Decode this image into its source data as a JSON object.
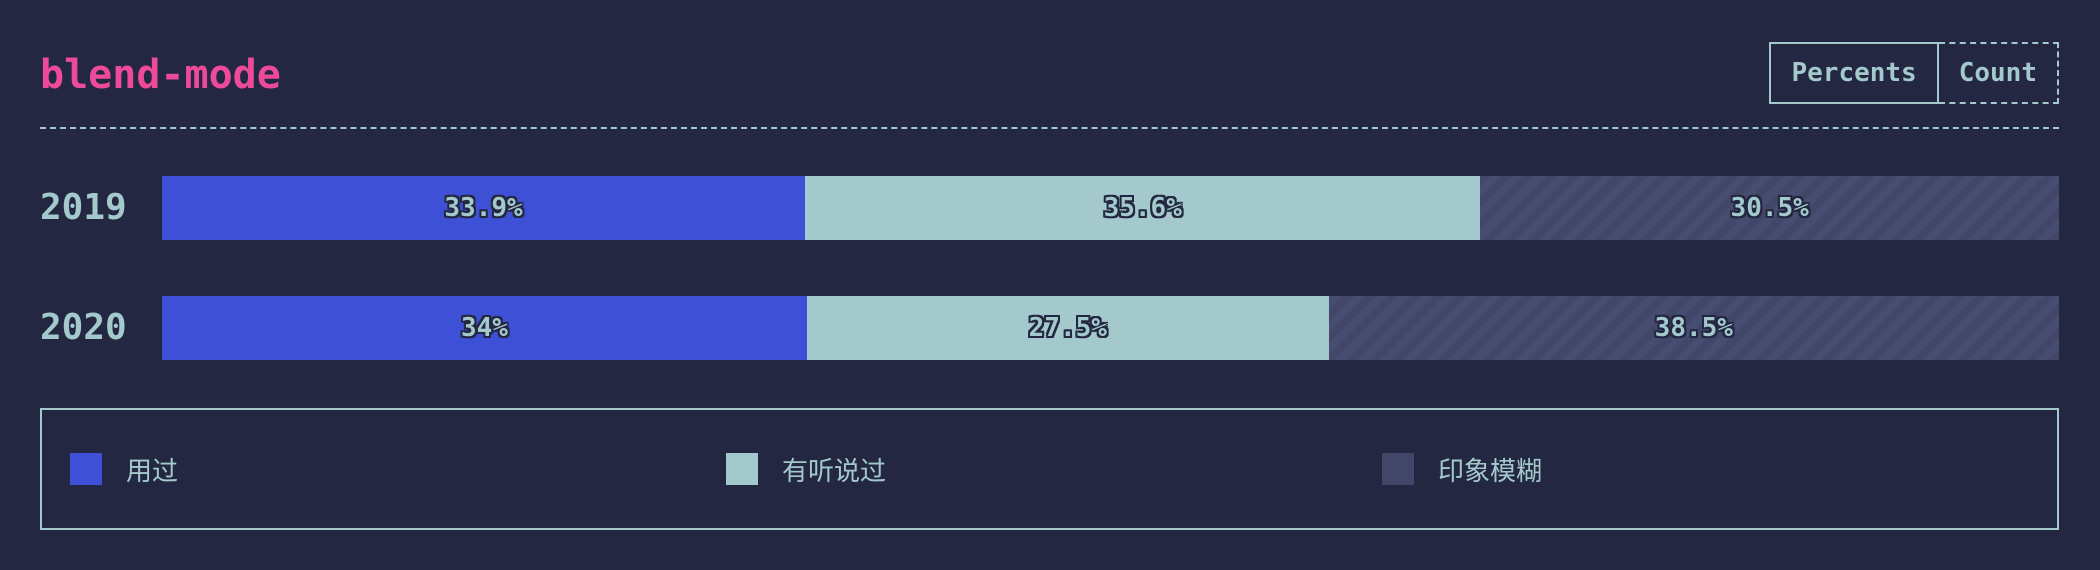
{
  "header": {
    "title": "blend-mode",
    "toggle": {
      "options": [
        "Percents",
        "Count"
      ],
      "selected": "Percents"
    }
  },
  "colors": {
    "background": "#232741",
    "title": "#ed4a9a",
    "text": "#a3c9cc",
    "used": "#3e51d6",
    "heard": "#a3c9cc",
    "vague": "#424769"
  },
  "chart_data": {
    "type": "bar",
    "orientation": "horizontal",
    "stacked": true,
    "normalized": true,
    "title": "blend-mode",
    "categories": [
      "2019",
      "2020"
    ],
    "series": [
      {
        "name": "用过",
        "values": [
          33.9,
          34
        ],
        "labels": [
          "33.9%",
          "34%"
        ],
        "color": "#3e51d6"
      },
      {
        "name": "有听说过",
        "values": [
          35.6,
          27.5
        ],
        "labels": [
          "35.6%",
          "27.5%"
        ],
        "color": "#a3c9cc"
      },
      {
        "name": "印象模糊",
        "values": [
          30.5,
          38.5
        ],
        "labels": [
          "30.5%",
          "38.5%"
        ],
        "color": "#424769",
        "pattern": "diagonal-stripes"
      }
    ],
    "legend_position": "bottom",
    "grid": false
  }
}
